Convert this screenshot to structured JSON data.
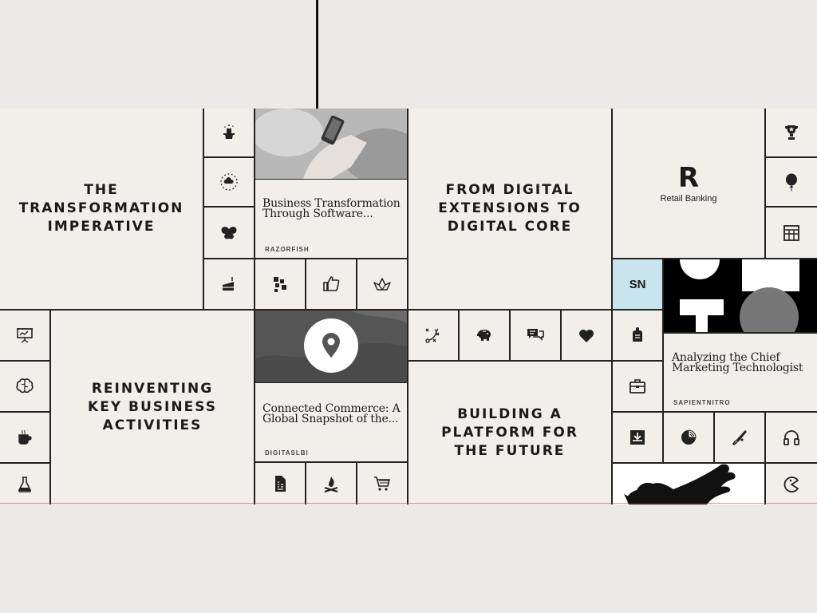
{
  "tiles": {
    "transformation": "The\nTransformation\nImperative",
    "digital_core": "From Digital\nExtensions to\nDigital Core",
    "reinventing": "Reinventing\nKey Business\nActivities",
    "platform": "Building a\nPlatform for\nthe Future"
  },
  "cards": {
    "razorfish": {
      "title": "Business Transformation Through Software...",
      "source": "RAZORFISH"
    },
    "digitas": {
      "title": "Connected Commerce: A Global Snapshot of the...",
      "source": "DIGITASLBI"
    },
    "sapient": {
      "title": "Analyzing the Chief Marketing Technologist",
      "source": "SAPIENTNITRO"
    }
  },
  "brands": {
    "retail_letter": "R",
    "retail_label": "Retail Banking",
    "sn": "SN"
  },
  "icons": [
    "magic-hat-icon",
    "cloud-network-icon",
    "butterfly-icon",
    "cake-icon",
    "blocks-icon",
    "thumbs-up-icon",
    "paper-crane-icon",
    "trophy-icon",
    "balloon-icon",
    "table-icon",
    "presentation-icon",
    "brain-icon",
    "coffee-icon",
    "flask-icon",
    "strategy-icon",
    "piggy-bank-icon",
    "chat-icon",
    "heart-icon",
    "backpack-icon",
    "briefcase-icon",
    "download-icon",
    "pie-chart-icon",
    "baseball-bat-icon",
    "headphones-icon",
    "document-icon",
    "campfire-icon",
    "cart-icon",
    "pacman-icon"
  ]
}
